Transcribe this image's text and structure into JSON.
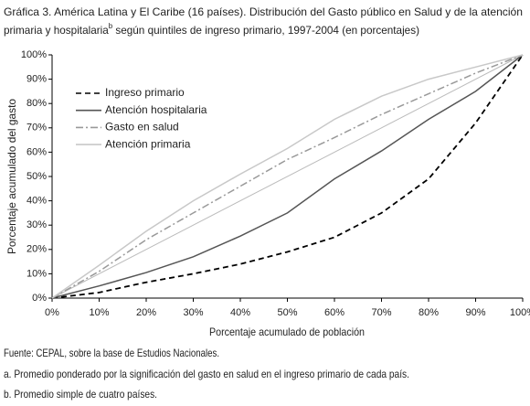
{
  "chart_data": {
    "type": "line",
    "title": "Gráfica 3. América Latina y El Caribe (16 países). Distribución del Gasto público en Salud y de la atención",
    "title_line2": "primaria y hospitalaria",
    "title_note_marker": "b",
    "title_line2_end": " según quintiles de ingreso primario, 1997-2004 (en porcentajes)",
    "x_label": "Porcentaje acumulado de población",
    "y_label": "Porcentaje acumulado del gasto",
    "x": [
      0,
      10,
      20,
      30,
      40,
      50,
      60,
      70,
      80,
      90,
      100
    ],
    "series": [
      {
        "name": "Ingreso primario",
        "color": "#000000",
        "dash": "6,4",
        "values": [
          0,
          2.3,
          6.5,
          10,
          14,
          19,
          25,
          35,
          49,
          72,
          100
        ]
      },
      {
        "name": "Atención hospitalaria",
        "color": "#555555",
        "dash": "none",
        "values": [
          0,
          5,
          10.5,
          17,
          25.5,
          35,
          49,
          60.5,
          73.5,
          85,
          100
        ]
      },
      {
        "name": "Gasto en salud",
        "color": "#999999",
        "dash": "8,3,2,3",
        "values": [
          0,
          11,
          24,
          35,
          46,
          57,
          66,
          75.5,
          84,
          92.5,
          100
        ]
      },
      {
        "name": "Atención primaria",
        "color": "#c8c8c8",
        "dash": "none",
        "values": [
          0,
          13.5,
          27.5,
          40,
          51,
          61.5,
          73.5,
          83,
          90,
          95,
          100
        ]
      }
    ],
    "xlim": [
      0,
      100
    ],
    "ylim": [
      0,
      100
    ],
    "xticks": [
      {
        "value": 0,
        "label": "0%"
      },
      {
        "value": 10,
        "label": "10%"
      },
      {
        "value": 20,
        "label": "20%"
      },
      {
        "value": 30,
        "label": "30%"
      },
      {
        "value": 40,
        "label": "40%"
      },
      {
        "value": 50,
        "label": "50%"
      },
      {
        "value": 60,
        "label": "60%"
      },
      {
        "value": 70,
        "label": "70%"
      },
      {
        "value": 80,
        "label": "80%"
      },
      {
        "value": 90,
        "label": "90%"
      },
      {
        "value": 100,
        "label": "100%"
      }
    ],
    "yticks": [
      {
        "value": 0,
        "label": "0%"
      },
      {
        "value": 10,
        "label": "10%"
      },
      {
        "value": 20,
        "label": "20%"
      },
      {
        "value": 30,
        "label": "30%"
      },
      {
        "value": 40,
        "label": "40%"
      },
      {
        "value": 50,
        "label": "50%"
      },
      {
        "value": 60,
        "label": "60%"
      },
      {
        "value": 70,
        "label": "70%"
      },
      {
        "value": 80,
        "label": "80%"
      },
      {
        "value": 90,
        "label": "90%"
      },
      {
        "value": 100,
        "label": "100%"
      }
    ],
    "equality_line": true,
    "legend": "upper-left",
    "notes": [
      "Fuente: CEPAL, sobre la base de Estudios Nacionales.",
      "a. Promedio ponderado por la significación del gasto en salud en el ingreso primario de cada país.",
      "b. Promedio simple de cuatro países."
    ]
  }
}
